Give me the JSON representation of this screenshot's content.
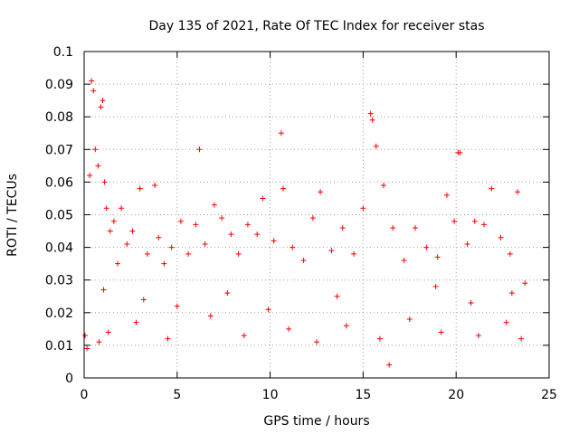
{
  "chart_data": {
    "type": "scatter",
    "title": "Day 135 of 2021, Rate Of TEC Index for receiver stas",
    "xlabel": "GPS time / hours",
    "ylabel": "ROTI / TECUs",
    "xlim": [
      0,
      25
    ],
    "ylim": [
      0,
      0.1
    ],
    "x_ticks": [
      "0",
      "5",
      "10",
      "15",
      "20",
      "25"
    ],
    "y_ticks": [
      "0",
      "0.01",
      "0.02",
      "0.03",
      "0.04",
      "0.05",
      "0.06",
      "0.07",
      "0.08",
      "0.09",
      "0.1"
    ],
    "grid": true,
    "marker": "plus",
    "series": [
      {
        "name": "ROTI",
        "color": "#ff0000",
        "x": [
          0.05,
          0.3,
          0.4,
          0.5,
          0.6,
          0.75,
          0.9,
          1.0,
          1.1,
          1.2,
          1.4,
          1.6,
          1.8,
          2.0,
          2.3,
          2.6,
          3.0,
          3.4,
          3.8,
          4.0,
          4.3,
          4.7,
          5.2,
          5.6,
          6.0,
          6.2,
          6.5,
          7.0,
          7.4,
          7.9,
          8.3,
          8.8,
          9.3,
          9.6,
          10.2,
          10.6,
          10.7,
          11.2,
          11.8,
          12.3,
          12.7,
          13.3,
          13.9,
          14.5,
          15.0,
          15.4,
          15.5,
          15.7,
          16.1,
          16.6,
          17.2,
          17.8,
          18.4,
          19.0,
          19.5,
          19.9,
          20.1,
          20.2,
          20.6,
          21.0,
          21.5,
          21.9,
          22.4,
          22.9,
          23.3,
          23.7,
          0.15,
          0.8,
          1.3,
          2.8,
          4.5,
          6.8,
          8.6,
          11.0,
          12.5,
          14.1,
          15.9,
          17.5,
          19.2,
          21.2,
          22.7,
          23.5,
          1.05,
          3.2,
          5.0,
          7.7,
          9.9,
          13.6,
          16.4,
          18.9,
          20.8,
          23.0
        ],
        "y": [
          0.013,
          0.062,
          0.091,
          0.088,
          0.07,
          0.065,
          0.083,
          0.085,
          0.06,
          0.052,
          0.045,
          0.048,
          0.035,
          0.052,
          0.041,
          0.045,
          0.058,
          0.038,
          0.059,
          0.043,
          0.035,
          0.04,
          0.048,
          0.038,
          0.047,
          0.07,
          0.041,
          0.053,
          0.049,
          0.044,
          0.038,
          0.047,
          0.044,
          0.055,
          0.042,
          0.075,
          0.058,
          0.04,
          0.036,
          0.049,
          0.057,
          0.039,
          0.046,
          0.038,
          0.052,
          0.081,
          0.079,
          0.071,
          0.059,
          0.046,
          0.036,
          0.046,
          0.04,
          0.037,
          0.056,
          0.048,
          0.069,
          0.069,
          0.041,
          0.048,
          0.047,
          0.058,
          0.043,
          0.038,
          0.057,
          0.029,
          0.009,
          0.011,
          0.014,
          0.017,
          0.012,
          0.019,
          0.013,
          0.015,
          0.011,
          0.016,
          0.012,
          0.018,
          0.014,
          0.013,
          0.017,
          0.012,
          0.027,
          0.024,
          0.022,
          0.026,
          0.021,
          0.025,
          0.004,
          0.028,
          0.023,
          0.026
        ]
      }
    ]
  }
}
